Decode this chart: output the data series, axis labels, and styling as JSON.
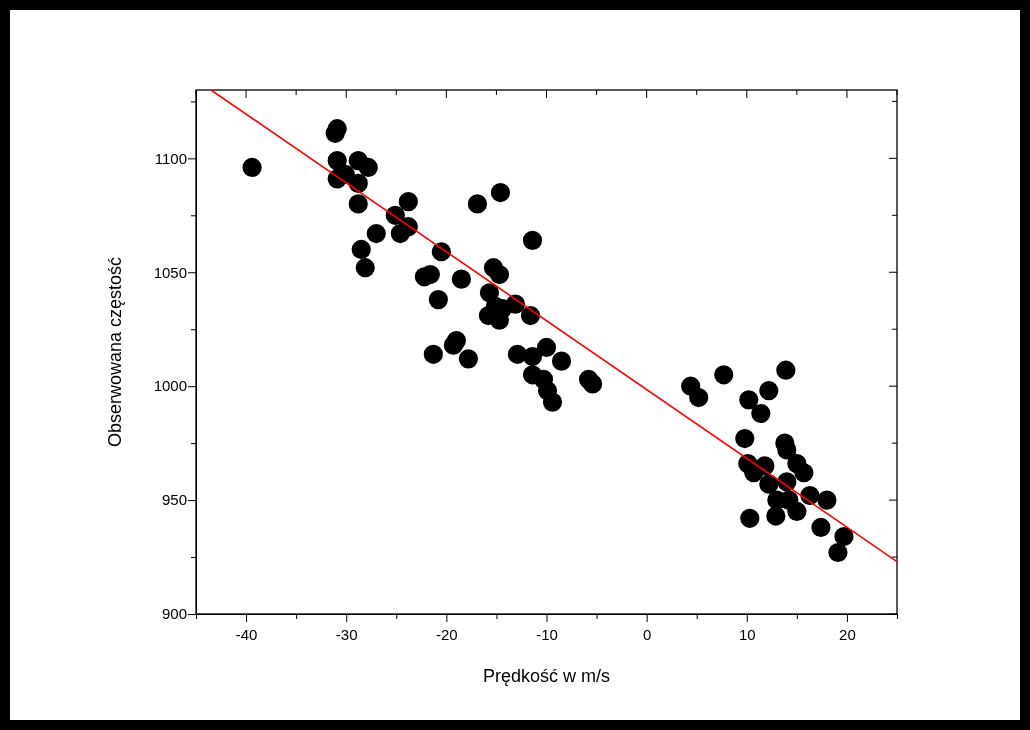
{
  "chart_data": {
    "type": "scatter",
    "xlabel": "Prędkość w m/s",
    "ylabel": "Obserwowana częstość",
    "xlim": [
      -45,
      25
    ],
    "ylim": [
      900,
      1130
    ],
    "xticks": [
      {
        "value": -45,
        "label": null
      },
      -40,
      {
        "value": -35,
        "label": null
      },
      -30,
      {
        "value": -25,
        "label": null
      },
      -20,
      {
        "value": -15,
        "label": null
      },
      -10,
      {
        "value": -5,
        "label": null
      },
      0,
      {
        "value": 5,
        "label": null
      },
      10,
      {
        "value": 15,
        "label": null
      },
      20,
      {
        "value": 25,
        "label": null
      }
    ],
    "yticks": [
      900,
      {
        "value": 925,
        "label": null
      },
      950,
      {
        "value": 975,
        "label": null
      },
      1000,
      {
        "value": 1025,
        "label": null
      },
      1050,
      {
        "value": 1075,
        "label": null
      },
      1100,
      {
        "value": 1125,
        "label": null
      }
    ],
    "grid": false,
    "marker": "circle",
    "series": [
      {
        "color": "#000000",
        "x": [
          -39.4,
          -31.1,
          -30.9,
          -30.9,
          -30.9,
          -30.1,
          -28.8,
          -28.8,
          -27.8,
          -28.8,
          -28.5,
          -28.1,
          -27.0,
          -25.1,
          -24.6,
          -23.8,
          -23.8,
          -22.2,
          -21.6,
          -21.3,
          -20.8,
          -20.5,
          -19.3,
          -19.0,
          -18.5,
          -17.8,
          -16.9,
          -14.6,
          -15.7,
          -15.3,
          -14.7,
          -15.1,
          -15.8,
          -14.4,
          -14.7,
          -13.1,
          -11.6,
          -12.9,
          -11.4,
          -11.4,
          -11.4,
          -10.0,
          -10.3,
          -9.9,
          -9.4,
          -8.5,
          -5.8,
          -5.4,
          4.4,
          5.2,
          7.7,
          13.9,
          12.2,
          10.2,
          11.4,
          9.8,
          13.8,
          14.0,
          10.1,
          10.7,
          11.8,
          12.2,
          15.0,
          15.7,
          14.0,
          13.0,
          14.2,
          15.0,
          16.3,
          18.0,
          10.3,
          12.9,
          17.4,
          19.7,
          19.1
        ],
        "values": [
          1096,
          1111,
          1113,
          1099,
          1091,
          1093,
          1099,
          1089,
          1096,
          1080,
          1060,
          1052,
          1067,
          1075,
          1067,
          1081,
          1070,
          1048,
          1049,
          1014,
          1038,
          1059,
          1018,
          1020,
          1047,
          1012,
          1080,
          1085,
          1041,
          1052,
          1049,
          1035,
          1031,
          1034,
          1029,
          1036,
          1031,
          1014,
          1064,
          1013,
          1005,
          1017,
          1003,
          998,
          993,
          1011,
          1003,
          1001,
          1000,
          995,
          1005,
          1007,
          998,
          994,
          988,
          977,
          975,
          972,
          966,
          962,
          965,
          957,
          966,
          962,
          958,
          950,
          950,
          945,
          952,
          950,
          942,
          943,
          938,
          934,
          927
        ]
      },
      {
        "type": "line",
        "color": "#ff0000",
        "marker": "none",
        "line_style": "solid",
        "x": [
          -43.5,
          25
        ],
        "values": [
          1130,
          923
        ]
      }
    ]
  }
}
